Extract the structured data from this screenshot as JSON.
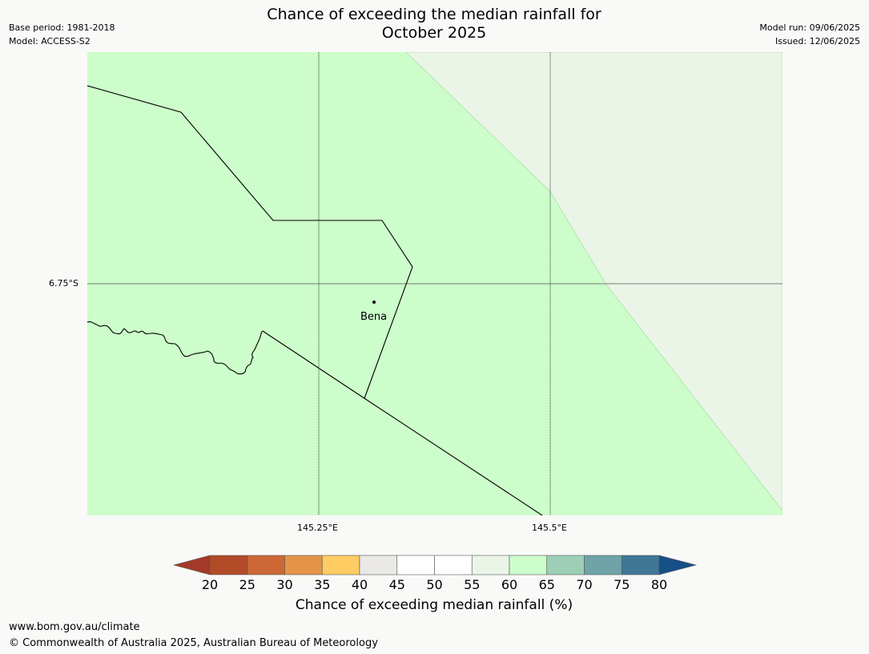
{
  "meta": {
    "base_period": "Base period: 1981-2018",
    "model": "Model: ACCESS-S2",
    "model_run": "Model run: 09/06/2025",
    "issued": "Issued: 12/06/2025"
  },
  "title": {
    "line1": "Chance of exceeding the median rainfall for",
    "line2": "October 2025"
  },
  "map": {
    "lat_label": "6.75°S",
    "lon_labels": [
      "145.25°E",
      "145.5°E"
    ],
    "place": "Bena",
    "fill_colors": {
      "band_60_65": "#ccfdca",
      "band_55_60": "#eaf5e8"
    }
  },
  "colorbar": {
    "ticks": [
      "20",
      "25",
      "30",
      "35",
      "40",
      "45",
      "50",
      "55",
      "60",
      "65",
      "70",
      "75",
      "80"
    ],
    "colors": [
      "#a33a27",
      "#b24a28",
      "#cd6735",
      "#e39447",
      "#fecc62",
      "#eae9e6",
      "#ffffff",
      "#ffffff",
      "#eaf5e8",
      "#ccfdca",
      "#9ccfb6",
      "#6ea4a8",
      "#407797",
      "#174f87"
    ],
    "label": "Chance of exceeding median rainfall (%)"
  },
  "footer": {
    "url": "www.bom.gov.au/climate",
    "copyright": "© Commonwealth of Australia 2025, Australian Bureau of Meteorology"
  }
}
